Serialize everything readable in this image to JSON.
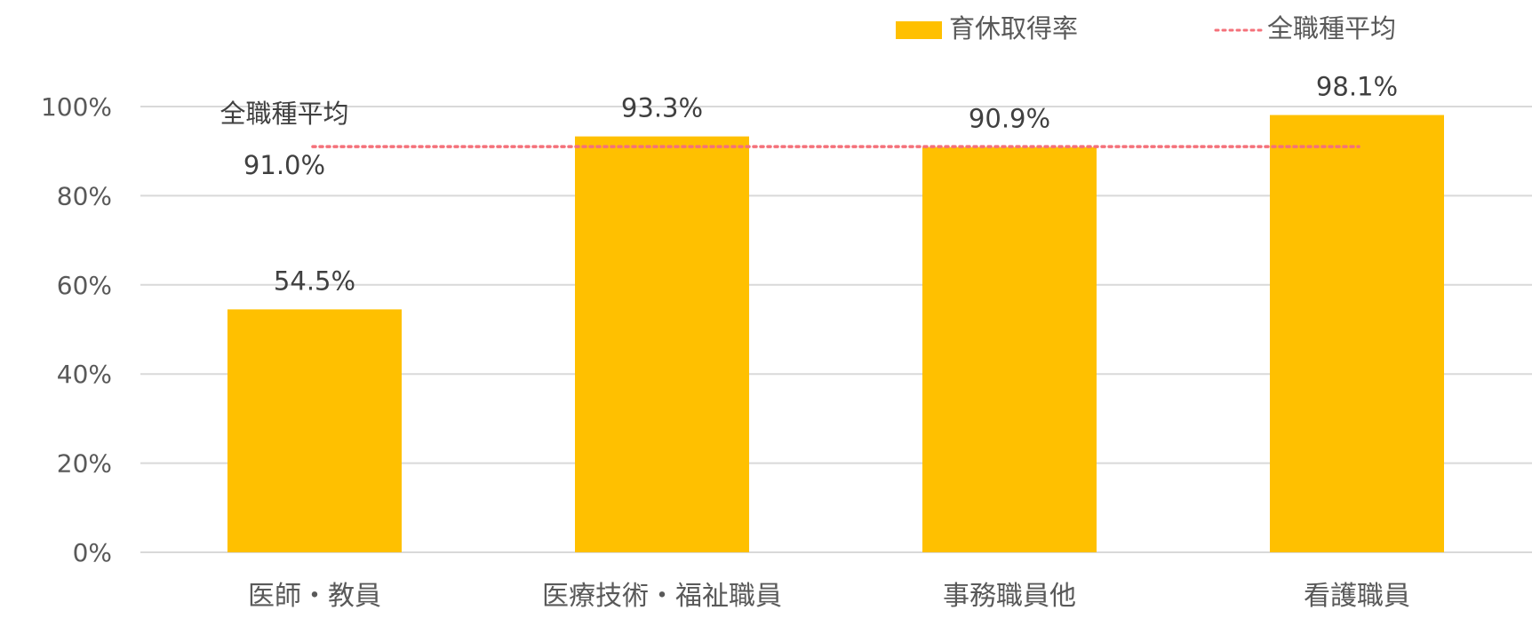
{
  "chart_data": {
    "type": "bar",
    "categories": [
      "医師・教員",
      "医療技術・福祉職員",
      "事務職員他",
      "看護職員"
    ],
    "series": [
      {
        "name": "育休取得率",
        "values": [
          54.5,
          93.3,
          90.9,
          98.1
        ],
        "color": "#FFC000"
      }
    ],
    "data_labels": [
      "54.5%",
      "93.3%",
      "90.9%",
      "98.1%"
    ],
    "reference_line": {
      "name": "全職種平均",
      "value": 91.0,
      "color": "#F4717A",
      "style": "dotted"
    },
    "annotation": {
      "title": "全職種平均",
      "value_label": "91.0%"
    },
    "y_ticks": [
      "0%",
      "20%",
      "40%",
      "60%",
      "80%",
      "100%"
    ],
    "ylim": [
      0,
      100
    ],
    "grid": true,
    "legend_position": "top-right",
    "title": "",
    "xlabel": "",
    "ylabel": ""
  }
}
